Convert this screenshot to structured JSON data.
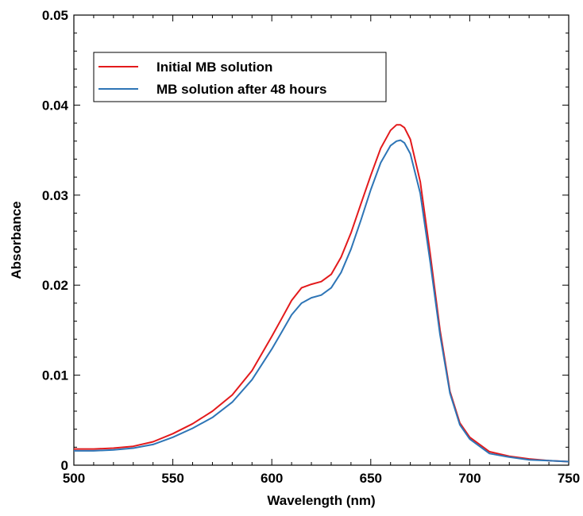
{
  "chart_data": {
    "type": "line",
    "title": "",
    "xlabel": "Wavelength (nm)",
    "ylabel": "Absorbance",
    "xlim": [
      500,
      750
    ],
    "ylim": [
      0,
      0.05
    ],
    "x_ticks": [
      500,
      550,
      600,
      650,
      700,
      750
    ],
    "x_tick_labels": [
      "500",
      "550",
      "600",
      "650",
      "700",
      "750"
    ],
    "y_ticks": [
      0,
      0.01,
      0.02,
      0.03,
      0.04,
      0.05
    ],
    "y_tick_labels": [
      "0",
      "0.01",
      "0.02",
      "0.03",
      "0.04",
      "0.05"
    ],
    "grid": false,
    "legend_position": "top-left",
    "x": [
      500,
      510,
      520,
      530,
      540,
      550,
      560,
      570,
      580,
      590,
      600,
      605,
      610,
      615,
      620,
      625,
      630,
      635,
      640,
      645,
      650,
      655,
      660,
      663,
      665,
      667,
      670,
      675,
      680,
      685,
      690,
      695,
      700,
      710,
      720,
      730,
      740,
      750
    ],
    "series": [
      {
        "name": "Initial MB solution",
        "color": "#e31a1c",
        "values": [
          0.0018,
          0.0018,
          0.0019,
          0.0021,
          0.0026,
          0.0035,
          0.0046,
          0.006,
          0.0078,
          0.0105,
          0.0143,
          0.0163,
          0.0183,
          0.0197,
          0.0201,
          0.0204,
          0.0212,
          0.0231,
          0.0258,
          0.029,
          0.0322,
          0.0352,
          0.0372,
          0.0378,
          0.0378,
          0.0375,
          0.0362,
          0.0315,
          0.0235,
          0.015,
          0.0082,
          0.0047,
          0.0031,
          0.0015,
          0.001,
          0.0007,
          0.0005,
          0.0004
        ]
      },
      {
        "name": "MB solution after 48 hours",
        "color": "#2e75b6",
        "values": [
          0.0016,
          0.0016,
          0.0017,
          0.0019,
          0.0023,
          0.0031,
          0.0041,
          0.0053,
          0.007,
          0.0095,
          0.0129,
          0.0148,
          0.0167,
          0.018,
          0.0186,
          0.0189,
          0.0197,
          0.0214,
          0.024,
          0.0272,
          0.0306,
          0.0336,
          0.0355,
          0.036,
          0.0361,
          0.0358,
          0.0346,
          0.0302,
          0.0226,
          0.0145,
          0.008,
          0.0045,
          0.0029,
          0.0013,
          0.0009,
          0.0006,
          0.0005,
          0.0004
        ]
      }
    ]
  }
}
